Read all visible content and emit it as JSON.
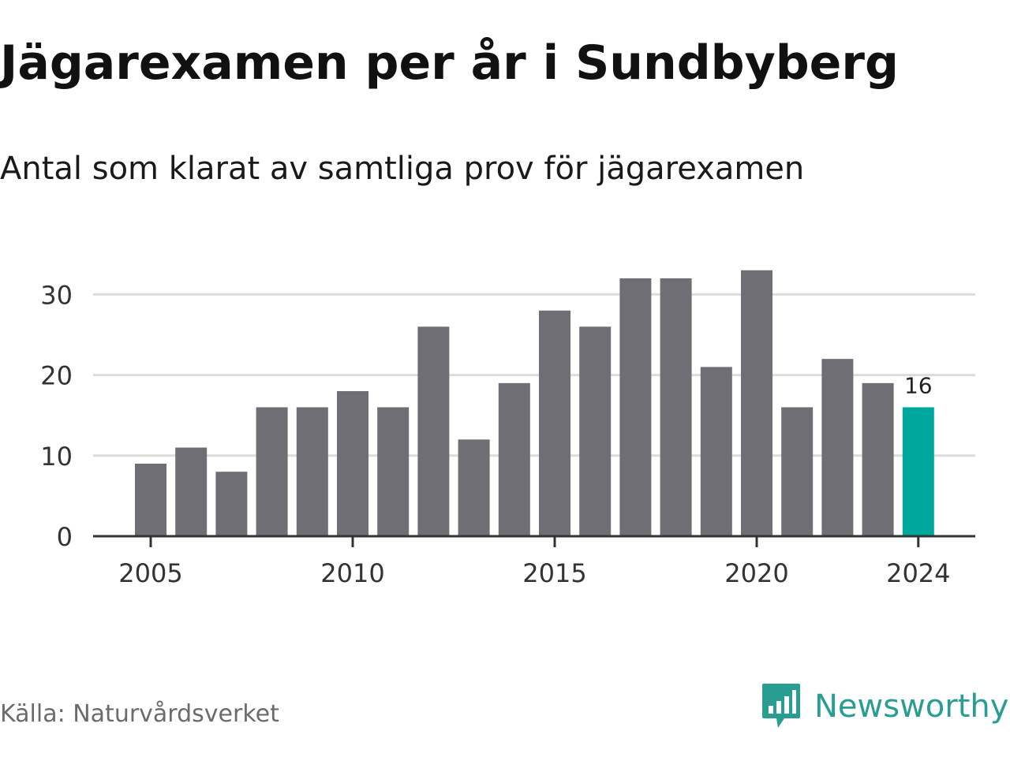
{
  "header": {
    "title": "Jägarexamen per år i Sundbyberg",
    "subtitle": "Antal som klarat av samtliga prov för jägarexamen"
  },
  "footer": {
    "source": "Källa: Naturvårdsverket",
    "brand_name": "Newsworthy",
    "brand_icon": "newsworthy-logo-icon"
  },
  "colors": {
    "bar": "#6f6e74",
    "highlight": "#00a79d",
    "grid": "#dcdcdc",
    "axis": "#333333",
    "brand": "#2a9d92"
  },
  "chart_data": {
    "type": "bar",
    "categories": [
      2005,
      2006,
      2007,
      2008,
      2009,
      2010,
      2011,
      2012,
      2013,
      2014,
      2015,
      2016,
      2017,
      2018,
      2019,
      2020,
      2021,
      2022,
      2023,
      2024
    ],
    "values": [
      9,
      11,
      8,
      16,
      16,
      18,
      16,
      26,
      12,
      19,
      28,
      26,
      32,
      32,
      21,
      33,
      16,
      22,
      19,
      16
    ],
    "highlight_category": 2024,
    "x_tick_labels": [
      "2005",
      "2010",
      "2015",
      "2020",
      "2024"
    ],
    "y_ticks": [
      0,
      10,
      20,
      30
    ],
    "ylim": [
      0,
      35
    ],
    "grid": "horizontal",
    "annotations": [
      {
        "category": 2024,
        "text": "16"
      }
    ]
  }
}
